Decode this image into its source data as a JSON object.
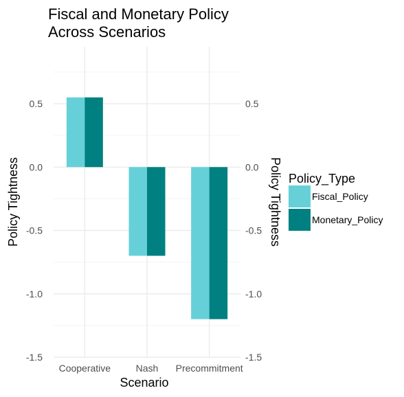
{
  "chart_data": {
    "type": "bar",
    "title": "Fiscal and Monetary Policy\n Across Scenarios",
    "xlabel": "Scenario",
    "ylabel": "Policy Tightness",
    "ylabel_secondary": "Policy Tightness",
    "categories": [
      "Cooperative",
      "Nash",
      "Precommitment"
    ],
    "series": [
      {
        "name": "Fiscal_Policy",
        "values": [
          0.55,
          -0.7,
          -1.2
        ],
        "color": "#66d0d8"
      },
      {
        "name": "Monetary_Policy",
        "values": [
          0.55,
          -0.7,
          -1.2
        ],
        "color": "#008080"
      }
    ],
    "ylim": [
      -1.5,
      0.95
    ],
    "yticks": [
      -1.5,
      -1.0,
      -0.5,
      0.0,
      0.5
    ],
    "ytick_labels": [
      "-1.5",
      "-1.0",
      "-0.5",
      "0.0",
      "0.5"
    ],
    "grid": true,
    "legend": {
      "title": "Policy_Type",
      "position": "right"
    }
  }
}
